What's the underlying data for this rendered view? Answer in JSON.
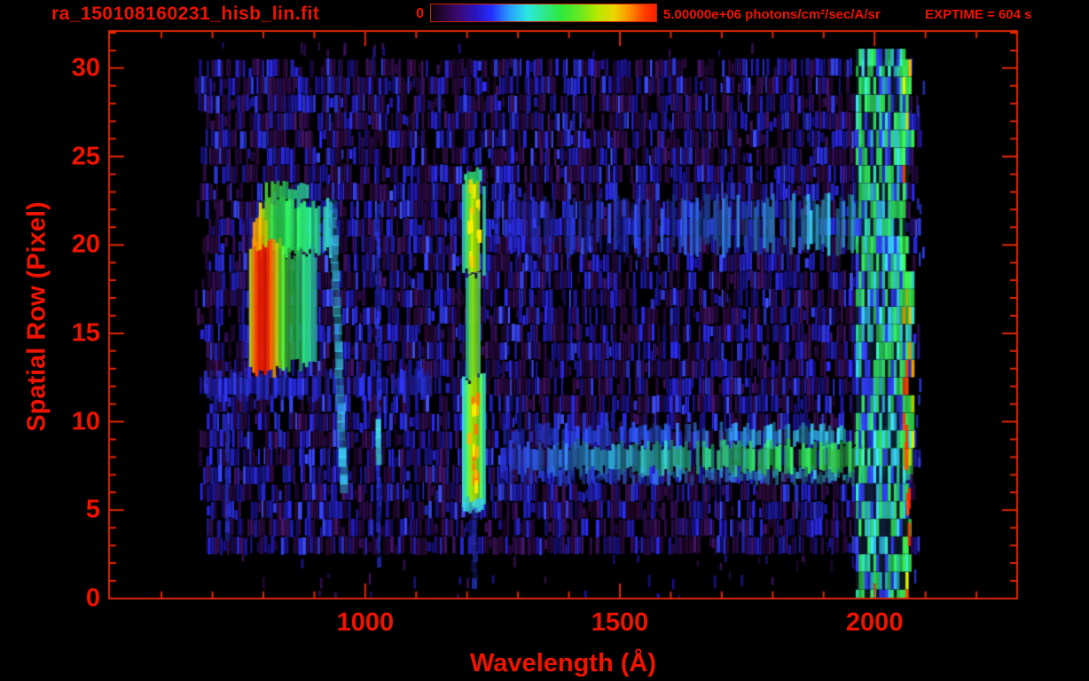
{
  "header": {
    "title": "ra_150108160231_hisb_lin.fit",
    "colorbar": {
      "min_label": "0",
      "max_label": "5.00000e+06 photons/cm²/sec/A/sr",
      "gradient": [
        [
          "#0d000d",
          0
        ],
        [
          "#250636",
          5
        ],
        [
          "#3a0a72",
          12
        ],
        [
          "#2a14c2",
          20
        ],
        [
          "#2430ff",
          27
        ],
        [
          "#28a0ff",
          35
        ],
        [
          "#2ae8e0",
          43
        ],
        [
          "#2ee890",
          50
        ],
        [
          "#2ee83a",
          58
        ],
        [
          "#66e820",
          66
        ],
        [
          "#b8e800",
          74
        ],
        [
          "#e8d800",
          81
        ],
        [
          "#ff9100",
          88
        ],
        [
          "#ff3c00",
          95
        ],
        [
          "#ff1e00",
          100
        ]
      ]
    },
    "exptime": "EXPTIME = 604 s"
  },
  "colors": {
    "text": "#ee1400",
    "axis": "#e02800",
    "background": "#000000"
  },
  "chart_data": {
    "type": "heatmap",
    "title": "ra_150108160231_hisb_lin.fit",
    "xlabel": "Wavelength (Å)",
    "ylabel": "Spatial Row (Pixel)",
    "xlim": [
      497,
      2280
    ],
    "ylim": [
      0,
      32.1
    ],
    "x_ticks_major": [
      {
        "value": 1000,
        "label": "1000"
      },
      {
        "value": 1500,
        "label": "1500"
      },
      {
        "value": 2000,
        "label": "2000"
      }
    ],
    "x_minor": {
      "start": 600,
      "end": 2200,
      "step": 100
    },
    "y_ticks_major": [
      {
        "value": 0,
        "label": "0"
      },
      {
        "value": 5,
        "label": "5"
      },
      {
        "value": 10,
        "label": "10"
      },
      {
        "value": 15,
        "label": "15"
      },
      {
        "value": 20,
        "label": "20"
      },
      {
        "value": 25,
        "label": "25"
      },
      {
        "value": 30,
        "label": "30"
      }
    ],
    "y_minor": {
      "start": 0,
      "end": 32,
      "step": 1
    },
    "colorbar_scale": {
      "min": 0,
      "max": 5000000,
      "units": "photons/cm²/sec/A/sr"
    },
    "exptime_seconds": 604,
    "data_extent": {
      "wavelength_angstrom": [
        669,
        2076
      ],
      "rows": [
        0,
        31
      ]
    },
    "row_intensity": [
      0.03,
      0.04,
      0.05,
      0.38,
      0.46,
      0.55,
      0.6,
      0.62,
      0.62,
      0.62,
      0.68,
      0.7,
      0.68,
      0.58,
      0.55,
      0.55,
      0.55,
      0.55,
      0.55,
      0.58,
      0.72,
      0.75,
      0.72,
      0.6,
      0.55,
      0.5,
      0.5,
      0.5,
      0.5,
      0.5,
      0.48,
      0.04
    ],
    "noise_colors": {
      "black": "#040008",
      "maroon": "#260830",
      "purple_dark": "#270a42",
      "purple": "#3a1158",
      "blue_dark": "#1b1490",
      "blue": "#2524cb",
      "blue_bright": "#3542ff"
    },
    "features": [
      {
        "kind": "band",
        "name": "below-arc-blue-band",
        "lam": [
          683,
          1145
        ],
        "rows": [
          11.35,
          12.75
        ],
        "stops": [
          [
            0,
            "#2c35e8"
          ],
          [
            0.5,
            "#2a2ce0"
          ],
          [
            1,
            "#2430d8"
          ]
        ],
        "alpha": [
          0.35,
          1
        ],
        "gap": 0.3,
        "vary": [
          0.45,
          1.3
        ],
        "rj": 0.3
      },
      {
        "kind": "band",
        "name": "arc-fringe-left",
        "lam": [
          752,
          776
        ],
        "rows": [
          13,
          21
        ],
        "stops": [
          [
            0,
            "#2a20c0"
          ],
          [
            1,
            "#4a35e0"
          ]
        ],
        "alpha": [
          0.3,
          0.9
        ],
        "gap": 0.45,
        "vary": [
          0.5,
          1.2
        ],
        "rj": 0.6
      },
      {
        "kind": "band",
        "name": "arc-cap",
        "lam": [
          791,
          930
        ],
        "rows": [
          19.6,
          22.4
        ],
        "stops": [
          [
            0,
            "#ffee00"
          ],
          [
            0.06,
            "#8ae818"
          ],
          [
            0.18,
            "#30e04a"
          ],
          [
            0.55,
            "#27dc60"
          ],
          [
            0.8,
            "#2cdc9c"
          ],
          [
            1,
            "#36d4e0"
          ]
        ],
        "alpha": [
          0.85,
          1
        ],
        "gap": 0.04,
        "vary": [
          0.8,
          1.15
        ],
        "rj": 0.35
      },
      {
        "kind": "band",
        "name": "arc-cap-top",
        "lam": [
          797,
          888
        ],
        "rows": [
          22.4,
          23.35
        ],
        "stops": [
          [
            0,
            "#55e43a"
          ],
          [
            0.5,
            "#2ee06a"
          ],
          [
            1,
            "#34d8c8"
          ]
        ],
        "alpha": [
          0.8,
          1
        ],
        "gap": 0.08,
        "vary": [
          0.75,
          1.1
        ],
        "rj": 0.3
      },
      {
        "kind": "band",
        "name": "arc-red-ridge",
        "lam": [
          772,
          830
        ],
        "rows": [
          12.9,
          20.1
        ],
        "stops": [
          [
            0,
            "#d8e800"
          ],
          [
            0.1,
            "#ff8800"
          ],
          [
            0.22,
            "#ff2a00"
          ],
          [
            0.5,
            "#f01800"
          ],
          [
            0.68,
            "#ff5500"
          ],
          [
            0.82,
            "#ffc400"
          ],
          [
            1,
            "#7ae020"
          ]
        ],
        "alpha": [
          0.9,
          1
        ],
        "gap": 0.02,
        "vary": [
          0.85,
          1.1
        ],
        "rj": 0.45
      },
      {
        "kind": "band",
        "name": "arc-orange-top",
        "lam": [
          779,
          802
        ],
        "rows": [
          19.8,
          21.4
        ],
        "stops": [
          [
            0,
            "#ff9900"
          ],
          [
            0.5,
            "#ffc400"
          ],
          [
            1,
            "#cfe400"
          ]
        ],
        "alpha": [
          0.85,
          1
        ],
        "gap": 0.05,
        "vary": [
          0.8,
          1.1
        ],
        "rj": 0.3
      },
      {
        "kind": "band",
        "name": "arc-right-limb",
        "lam": [
          830,
          903
        ],
        "rows": [
          13.2,
          19.6
        ],
        "stops": [
          [
            0,
            "#62e426"
          ],
          [
            0.35,
            "#2cd855"
          ],
          [
            0.75,
            "#2dd88e"
          ],
          [
            1,
            "#38cfd8"
          ]
        ],
        "alpha": [
          0.8,
          1
        ],
        "gap": 0.12,
        "vary": [
          0.7,
          1.15
        ],
        "rj": 0.4
      },
      {
        "kind": "line",
        "name": "cyan-streak",
        "lam": [
          958,
          936
        ],
        "rows": [
          6,
          22.2
        ],
        "w": 9,
        "color": "#38c4f0",
        "alpha": [
          0.35,
          0.95
        ],
        "vary": [
          0.6,
          1.25
        ]
      },
      {
        "kind": "line",
        "name": "blue-line-1026",
        "lam": [
          1027,
          1025
        ],
        "rows": [
          1.8,
          22
        ],
        "w": 5,
        "color": "#2b36e8",
        "alpha": [
          0.35,
          0.9
        ],
        "vary": [
          0.5,
          1.2
        ]
      },
      {
        "kind": "line",
        "name": "cyan-seg-1026",
        "lam": [
          1026,
          1026
        ],
        "rows": [
          7.6,
          10
        ],
        "w": 6,
        "color": "#3ed0e0",
        "alpha": [
          0.8,
          1
        ],
        "vary": [
          0.8,
          1.1
        ]
      },
      {
        "kind": "line",
        "name": "blue-line-730",
        "lam": [
          729,
          730
        ],
        "rows": [
          3.3,
          9.6
        ],
        "w": 5,
        "color": "#2733cc",
        "alpha": [
          0.4,
          0.9
        ],
        "vary": [
          0.6,
          1.1
        ]
      },
      {
        "kind": "band",
        "name": "lya-stripe-bottom",
        "lam": [
          1190,
          1232
        ],
        "rows": [
          5.2,
          12.4
        ],
        "stops": [
          [
            0,
            "#2fd0cc"
          ],
          [
            0.16,
            "#47e060"
          ],
          [
            0.36,
            "#a8e800"
          ],
          [
            0.62,
            "#b4ec00"
          ],
          [
            0.84,
            "#47e060"
          ],
          [
            1,
            "#2fd0cc"
          ]
        ],
        "alpha": [
          0.9,
          1
        ],
        "gap": 0.02,
        "vary": [
          0.85,
          1.12
        ],
        "rj": 0.35
      },
      {
        "kind": "band",
        "name": "lya-stripe-waist",
        "lam": [
          1197,
          1224
        ],
        "rows": [
          12.4,
          18.6
        ],
        "stops": [
          [
            0,
            "#33d4ac"
          ],
          [
            0.3,
            "#79e81e"
          ],
          [
            0.7,
            "#8fe514"
          ],
          [
            1,
            "#33d4ac"
          ]
        ],
        "alpha": [
          0.85,
          1
        ],
        "gap": 0.03,
        "vary": [
          0.8,
          1.1
        ],
        "rj": 0.5
      },
      {
        "kind": "band",
        "name": "lya-stripe-top",
        "lam": [
          1190,
          1232
        ],
        "rows": [
          18.6,
          23.6
        ],
        "stops": [
          [
            0,
            "#2fd0cc"
          ],
          [
            0.16,
            "#47e060"
          ],
          [
            0.38,
            "#aae800"
          ],
          [
            0.6,
            "#b4ec00"
          ],
          [
            0.84,
            "#47e060"
          ],
          [
            1,
            "#2fd0cc"
          ]
        ],
        "alpha": [
          0.9,
          1
        ],
        "gap": 0.02,
        "vary": [
          0.85,
          1.12
        ],
        "rj": 0.35
      },
      {
        "kind": "band",
        "name": "lya-top-cap",
        "lam": [
          1194,
          1228
        ],
        "rows": [
          23.6,
          24.2
        ],
        "stops": [
          [
            0,
            "#35dc85"
          ],
          [
            0.5,
            "#2fe06e"
          ],
          [
            1,
            "#35d4c0"
          ]
        ],
        "alpha": [
          0.85,
          1
        ],
        "gap": 0.05,
        "vary": [
          0.8,
          1.1
        ],
        "rj": 0.2
      },
      {
        "kind": "band",
        "name": "lya-bottom-cap",
        "lam": [
          1192,
          1230
        ],
        "rows": [
          4.9,
          5.6
        ],
        "stops": [
          [
            0,
            "#36c4e0"
          ],
          [
            0.5,
            "#38d0d4"
          ],
          [
            1,
            "#36c4e0"
          ]
        ],
        "alpha": [
          0.85,
          1
        ],
        "gap": 0.05,
        "vary": [
          0.8,
          1.1
        ],
        "rj": 0.2
      },
      {
        "kind": "sparse",
        "name": "lya-hot-flecks-low",
        "lam": [
          1200,
          1224
        ],
        "rows": [
          6,
          12
        ],
        "count": 16,
        "colors": [
          "#ffee00",
          "#ffb400",
          "#ff7a00"
        ],
        "w": [
          2,
          5
        ],
        "h": [
          0.35,
          0.8
        ]
      },
      {
        "kind": "sparse",
        "name": "lya-hot-flecks-high",
        "lam": [
          1200,
          1224
        ],
        "rows": [
          19,
          23.4
        ],
        "count": 12,
        "colors": [
          "#ffee00",
          "#ffcc00"
        ],
        "w": [
          2,
          5
        ],
        "h": [
          0.35,
          0.8
        ]
      },
      {
        "kind": "line",
        "name": "lya-faint-tail",
        "lam": [
          1214,
          1216
        ],
        "rows": [
          0.6,
          5
        ],
        "w": 6,
        "color": "#2836cc",
        "alpha": [
          0.35,
          0.8
        ],
        "vary": [
          0.6,
          1.1
        ]
      },
      {
        "kind": "band",
        "name": "row9-cyan-band",
        "lam": [
          1265,
          2072
        ],
        "rows": [
          8.7,
          9.7
        ],
        "stops": [
          [
            0,
            "#2330cc"
          ],
          [
            0.3,
            "#2a48e4"
          ],
          [
            0.55,
            "#2f8ce8"
          ],
          [
            0.78,
            "#33c8e4"
          ],
          [
            1,
            "#35dcc0"
          ]
        ],
        "alpha": [
          0.5,
          1
        ],
        "gap": 0.18,
        "vary": [
          0.55,
          1.25
        ],
        "rj": 0.3
      },
      {
        "kind": "band",
        "name": "row8-green-band",
        "lam": [
          1265,
          2072
        ],
        "rows": [
          7.2,
          8.7
        ],
        "stops": [
          [
            0,
            "#2a35dc"
          ],
          [
            0.25,
            "#2fa8d8"
          ],
          [
            0.5,
            "#2fd88a"
          ],
          [
            0.72,
            "#30e455"
          ],
          [
            1,
            "#38ee3e"
          ]
        ],
        "alpha": [
          0.6,
          1
        ],
        "gap": 0.1,
        "vary": [
          0.6,
          1.2
        ],
        "rj": 0.35
      },
      {
        "kind": "band",
        "name": "row7-cyan-band",
        "lam": [
          1265,
          2072
        ],
        "rows": [
          6.6,
          7.2
        ],
        "stops": [
          [
            0,
            "#2a2cd0"
          ],
          [
            0.5,
            "#2d7cd8"
          ],
          [
            1,
            "#33d4c4"
          ]
        ],
        "alpha": [
          0.4,
          0.95
        ],
        "gap": 0.25,
        "vary": [
          0.5,
          1.2
        ],
        "rj": 0.25
      },
      {
        "kind": "band",
        "name": "rows20-22-band",
        "lam": [
          1252,
          2055
        ],
        "rows": [
          19.75,
          22.45
        ],
        "stops": [
          [
            0,
            "#2a2ed8"
          ],
          [
            0.35,
            "#2a46e8"
          ],
          [
            0.62,
            "#2f86e0"
          ],
          [
            0.85,
            "#30bcd8"
          ],
          [
            1,
            "#33d8b0"
          ]
        ],
        "alpha": [
          0.3,
          0.95
        ],
        "gap": 0.3,
        "vary": [
          0.45,
          1.3
        ],
        "rj": 0.5
      },
      {
        "kind": "edge",
        "name": "right-edge-green-column",
        "lam": [
          1963,
          2078
        ],
        "rows": [
          0.8,
          30.6
        ],
        "palette": [
          [
            "#2cd455",
            0.3
          ],
          [
            "#2fd8a8",
            0.12
          ],
          [
            "#33c0e8",
            0.16
          ],
          [
            "#2f3cf0",
            0.2
          ],
          [
            "#0d1a2a",
            0.22
          ]
        ],
        "hot_lam": 2052,
        "hot_palette": [
          [
            "#36e84a",
            0.42
          ],
          [
            "#bfe800",
            0.1
          ],
          [
            "#ff4400",
            0.08
          ],
          [
            "#ffaa00",
            0.05
          ],
          [
            "#2fd8c0",
            0.15
          ],
          [
            "#2f44f0",
            0.1
          ],
          [
            "#0a2410",
            0.1
          ]
        ],
        "end": [
          2058,
          2078
        ]
      },
      {
        "kind": "sparse",
        "name": "edge-red-strips",
        "lam": [
          2058,
          2072
        ],
        "rows": [
          3.4,
          9.4
        ],
        "count": 6,
        "colors": [
          "#ff2a00",
          "#ff5500"
        ],
        "w": [
          3,
          5
        ],
        "h": [
          0.7,
          1.6
        ]
      },
      {
        "kind": "sparse",
        "name": "stray-blue-strips",
        "lam": [
          2078,
          2098
        ],
        "rows": [
          1,
          30
        ],
        "count": 12,
        "colors": [
          "#2a3ce0",
          "#2330b8"
        ],
        "w": [
          2,
          3
        ],
        "h": [
          0.5,
          0.9
        ]
      }
    ],
    "render": {
      "seed": 7,
      "col_width": 3.3
    }
  }
}
